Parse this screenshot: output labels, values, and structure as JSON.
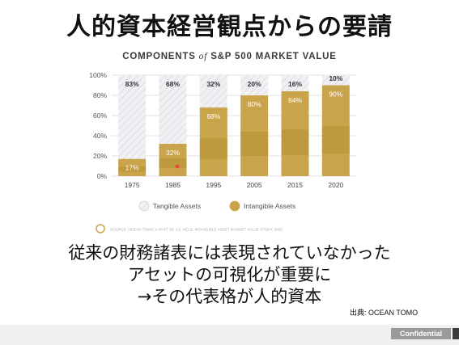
{
  "slide": {
    "title": "人的資本経営観点からの要請",
    "body_lines": [
      "従来の財務諸表には表現されていなかった",
      "アセットの可視化が重要に",
      "→その代表格が人的資本"
    ],
    "source": "出典: OCEAN TOMO",
    "confidential": "Confidential"
  },
  "chart_data": {
    "type": "bar",
    "title_parts": [
      "COMPONENTS ",
      "of",
      " S&P 500 MARKET VALUE"
    ],
    "categories": [
      "1975",
      "1985",
      "1995",
      "2005",
      "2015",
      "2020"
    ],
    "series": [
      {
        "name": "Tangible Assets",
        "values": [
          83,
          68,
          32,
          20,
          16,
          10
        ],
        "color": "#ecebea"
      },
      {
        "name": "Intangible Assets",
        "values": [
          17,
          32,
          68,
          80,
          84,
          90
        ],
        "color": "#c9a44a"
      }
    ],
    "y_ticks": [
      "0%",
      "20%",
      "40%",
      "60%",
      "80%",
      "100%"
    ],
    "ylim": [
      0,
      100
    ],
    "source_note": "SOURCE: OCEAN TOMO, A PART OF J.S. HELD, INTANGIBLE ASSET MARKET VALUE STUDY, 2020",
    "legend_position": "bottom"
  }
}
